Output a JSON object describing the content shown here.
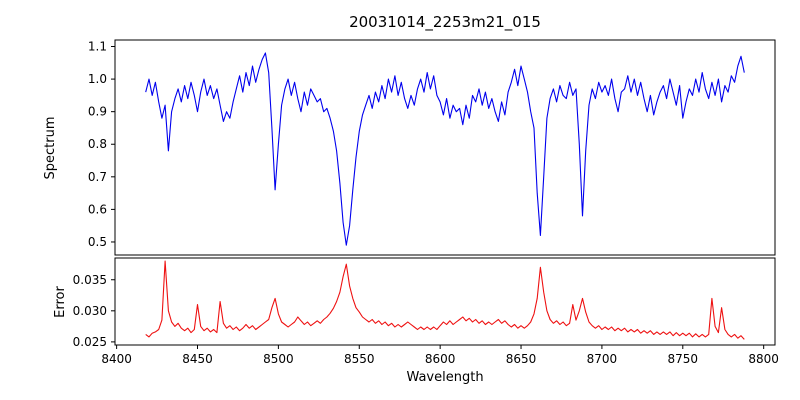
{
  "chart_data": {
    "type": "line",
    "title": "20031014_2253m21_015",
    "xlabel": "Wavelength",
    "grid": false,
    "legend": "none",
    "xlim": [
      8399,
      8807
    ],
    "xticks": [
      8400,
      8450,
      8500,
      8550,
      8600,
      8650,
      8700,
      8750,
      8800
    ],
    "panels": [
      {
        "name": "spectrum",
        "ylabel": "Spectrum",
        "ylim": [
          0.46,
          1.12
        ],
        "yticks": [
          0.5,
          0.6,
          0.7,
          0.8,
          0.9,
          1.0,
          1.1
        ],
        "ytick_decimals": 1,
        "show_xticks": false,
        "series": {
          "name": "spectrum-flux",
          "color": "#0000ee",
          "x_start": 8418,
          "x_step": 2,
          "values": [
            0.96,
            1.0,
            0.95,
            0.99,
            0.93,
            0.88,
            0.92,
            0.78,
            0.9,
            0.94,
            0.97,
            0.93,
            0.98,
            0.94,
            0.99,
            0.95,
            0.9,
            0.96,
            1.0,
            0.95,
            0.98,
            0.94,
            0.97,
            0.92,
            0.87,
            0.9,
            0.88,
            0.93,
            0.97,
            1.01,
            0.96,
            1.02,
            0.98,
            1.04,
            0.99,
            1.03,
            1.06,
            1.08,
            1.02,
            0.85,
            0.66,
            0.8,
            0.92,
            0.97,
            1.0,
            0.95,
            0.99,
            0.94,
            0.9,
            0.96,
            0.92,
            0.97,
            0.95,
            0.93,
            0.94,
            0.9,
            0.91,
            0.88,
            0.84,
            0.78,
            0.68,
            0.56,
            0.49,
            0.55,
            0.66,
            0.76,
            0.84,
            0.89,
            0.92,
            0.95,
            0.91,
            0.96,
            0.93,
            0.98,
            0.94,
            1.0,
            0.96,
            1.01,
            0.95,
            0.99,
            0.94,
            0.91,
            0.95,
            0.92,
            0.97,
            1.0,
            0.96,
            1.02,
            0.97,
            1.01,
            0.95,
            0.93,
            0.89,
            0.94,
            0.88,
            0.92,
            0.9,
            0.91,
            0.86,
            0.92,
            0.88,
            0.95,
            0.93,
            0.97,
            0.92,
            0.96,
            0.91,
            0.94,
            0.9,
            0.87,
            0.93,
            0.89,
            0.96,
            0.99,
            1.03,
            0.98,
            1.04,
            1.0,
            0.96,
            0.9,
            0.85,
            0.65,
            0.52,
            0.7,
            0.88,
            0.94,
            0.97,
            0.93,
            0.98,
            0.95,
            0.94,
            0.99,
            0.95,
            0.97,
            0.8,
            0.58,
            0.78,
            0.92,
            0.97,
            0.94,
            0.99,
            0.96,
            0.98,
            0.95,
            1.0,
            0.94,
            0.9,
            0.96,
            0.97,
            1.01,
            0.96,
            1.0,
            0.95,
            0.99,
            0.94,
            0.9,
            0.95,
            0.89,
            0.93,
            0.96,
            0.98,
            0.94,
            1.0,
            0.96,
            0.92,
            0.98,
            0.88,
            0.93,
            0.97,
            0.95,
            1.0,
            0.96,
            1.02,
            0.97,
            0.94,
            0.99,
            0.95,
            1.0,
            0.93,
            0.98,
            0.96,
            1.01,
            0.99,
            1.04,
            1.07,
            1.02
          ]
        }
      },
      {
        "name": "error",
        "ylabel": "Error",
        "ylim": [
          0.0245,
          0.0385
        ],
        "yticks": [
          0.025,
          0.03,
          0.035
        ],
        "ytick_decimals": 3,
        "show_xticks": true,
        "series": {
          "name": "spectrum-error",
          "color": "#ee1111",
          "x_start": 8418,
          "x_step": 2,
          "values": [
            0.0262,
            0.0258,
            0.0264,
            0.0266,
            0.027,
            0.0285,
            0.038,
            0.03,
            0.0282,
            0.0275,
            0.028,
            0.0272,
            0.0268,
            0.0272,
            0.0265,
            0.027,
            0.031,
            0.0275,
            0.0268,
            0.0272,
            0.0266,
            0.027,
            0.0265,
            0.0315,
            0.028,
            0.0272,
            0.0276,
            0.027,
            0.0274,
            0.0268,
            0.0272,
            0.0278,
            0.0272,
            0.0276,
            0.027,
            0.0274,
            0.0278,
            0.0282,
            0.0286,
            0.0305,
            0.032,
            0.0295,
            0.0282,
            0.0278,
            0.0274,
            0.0278,
            0.0282,
            0.029,
            0.0284,
            0.0278,
            0.0282,
            0.0276,
            0.028,
            0.0284,
            0.028,
            0.0286,
            0.029,
            0.0296,
            0.0304,
            0.0315,
            0.033,
            0.0355,
            0.0375,
            0.034,
            0.032,
            0.0305,
            0.0298,
            0.029,
            0.0286,
            0.0282,
            0.0286,
            0.028,
            0.0284,
            0.0278,
            0.0282,
            0.0276,
            0.028,
            0.0274,
            0.0278,
            0.0274,
            0.0278,
            0.0282,
            0.0278,
            0.0274,
            0.027,
            0.0274,
            0.027,
            0.0274,
            0.027,
            0.0274,
            0.027,
            0.0276,
            0.0282,
            0.0278,
            0.0284,
            0.0278,
            0.0282,
            0.0286,
            0.029,
            0.0284,
            0.0288,
            0.0282,
            0.0286,
            0.028,
            0.0284,
            0.0278,
            0.0282,
            0.0278,
            0.0282,
            0.0286,
            0.028,
            0.0284,
            0.0278,
            0.0274,
            0.0278,
            0.0272,
            0.0276,
            0.0272,
            0.0276,
            0.0282,
            0.0295,
            0.032,
            0.037,
            0.033,
            0.03,
            0.0286,
            0.028,
            0.0284,
            0.0278,
            0.0282,
            0.0276,
            0.028,
            0.031,
            0.0285,
            0.03,
            0.032,
            0.0298,
            0.0282,
            0.0276,
            0.0272,
            0.0276,
            0.027,
            0.0274,
            0.027,
            0.0274,
            0.0268,
            0.0272,
            0.0268,
            0.0272,
            0.0266,
            0.027,
            0.0266,
            0.027,
            0.0264,
            0.0268,
            0.0264,
            0.0268,
            0.0262,
            0.0266,
            0.0262,
            0.0266,
            0.0262,
            0.0266,
            0.026,
            0.0265,
            0.026,
            0.0264,
            0.026,
            0.0264,
            0.0258,
            0.0263,
            0.0258,
            0.0262,
            0.0258,
            0.0262,
            0.032,
            0.0275,
            0.0265,
            0.0305,
            0.027,
            0.0262,
            0.0258,
            0.0262,
            0.0256,
            0.026,
            0.0254
          ]
        }
      }
    ]
  }
}
